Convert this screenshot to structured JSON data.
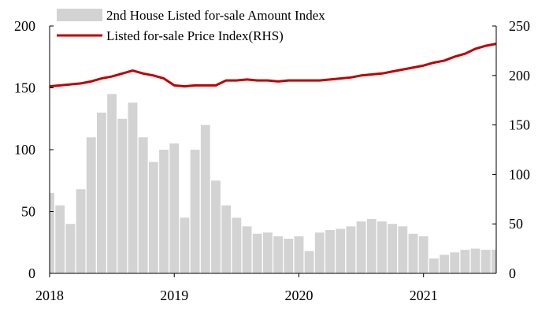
{
  "chart_data": {
    "type": "bar+line",
    "x_labels": [
      "2018",
      "2019",
      "2020",
      "2021"
    ],
    "xlim": [
      "2018-01",
      "2021-08"
    ],
    "left_axis": {
      "ticks": [
        0,
        50,
        100,
        150,
        200
      ],
      "ylim": [
        0,
        200
      ]
    },
    "right_axis": {
      "ticks": [
        0,
        50,
        100,
        150,
        200,
        250
      ],
      "ylim": [
        0,
        250
      ]
    },
    "legend_position": "top-left",
    "series": [
      {
        "name": "2nd House Listed for-sale Amount Index",
        "kind": "bar",
        "axis": "left",
        "color": "#d4d3d3",
        "x": [
          "2018-01",
          "2018-02",
          "2018-03",
          "2018-04",
          "2018-05",
          "2018-06",
          "2018-07",
          "2018-08",
          "2018-09",
          "2018-10",
          "2018-11",
          "2018-12",
          "2019-01",
          "2019-02",
          "2019-03",
          "2019-04",
          "2019-05",
          "2019-06",
          "2019-07",
          "2019-08",
          "2019-09",
          "2019-10",
          "2019-11",
          "2019-12",
          "2020-01",
          "2020-02",
          "2020-03",
          "2020-04",
          "2020-05",
          "2020-06",
          "2020-07",
          "2020-08",
          "2020-09",
          "2020-10",
          "2020-11",
          "2020-12",
          "2021-01",
          "2021-02",
          "2021-03",
          "2021-04",
          "2021-05",
          "2021-06",
          "2021-07",
          "2021-08"
        ],
        "values": [
          65,
          55,
          40,
          68,
          110,
          130,
          145,
          125,
          138,
          110,
          90,
          100,
          105,
          45,
          100,
          120,
          75,
          55,
          45,
          38,
          32,
          33,
          30,
          28,
          30,
          18,
          33,
          35,
          36,
          38,
          42,
          44,
          42,
          40,
          38,
          32,
          30,
          12,
          15,
          17,
          19,
          20,
          19,
          19
        ]
      },
      {
        "name": "Listed for-sale Price Index(RHS)",
        "kind": "line",
        "axis": "right",
        "color": "#c00000",
        "x": [
          "2018-01",
          "2018-02",
          "2018-03",
          "2018-04",
          "2018-05",
          "2018-06",
          "2018-07",
          "2018-08",
          "2018-09",
          "2018-10",
          "2018-11",
          "2018-12",
          "2019-01",
          "2019-02",
          "2019-03",
          "2019-04",
          "2019-05",
          "2019-06",
          "2019-07",
          "2019-08",
          "2019-09",
          "2019-10",
          "2019-11",
          "2019-12",
          "2020-01",
          "2020-02",
          "2020-03",
          "2020-04",
          "2020-05",
          "2020-06",
          "2020-07",
          "2020-08",
          "2020-09",
          "2020-10",
          "2020-11",
          "2020-12",
          "2021-01",
          "2021-02",
          "2021-03",
          "2021-04",
          "2021-05",
          "2021-06",
          "2021-07",
          "2021-08"
        ],
        "values": [
          189,
          190,
          191,
          192,
          194,
          197,
          199,
          202,
          205,
          202,
          200,
          197,
          190,
          189,
          190,
          190,
          190,
          195,
          195,
          196,
          195,
          195,
          194,
          195,
          195,
          195,
          195,
          196,
          197,
          198,
          200,
          201,
          202,
          204,
          206,
          208,
          210,
          213,
          215,
          219,
          222,
          227,
          230,
          232
        ]
      }
    ]
  }
}
